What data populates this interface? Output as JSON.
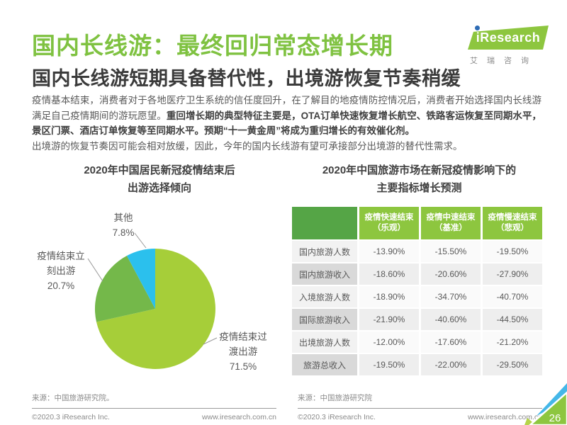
{
  "page": {
    "number": "26"
  },
  "header": {
    "title": "国内长线游：最终回归常态增长期",
    "subtitle": "国内长线游短期具备替代性，出境游恢复节奏稍缓",
    "title_color": "#7fc241",
    "logo": {
      "brand": "iResearch",
      "brand_cn": "艾瑞咨询"
    }
  },
  "intro": {
    "p1_normal": "疫情基本结束，消费者对于各地医疗卫生系统的信任度回升，在了解目的地疫情防控情况后，消费者开始选择国内长线游满足自己疫情期间的游玩愿望。",
    "p1_bold": "重回增长期的典型特征主要是，OTA订单快速恢复增长航空、铁路客运恢复至同期水平，景区门票、酒店订单恢复等至同期水平。预期“十一黄金周”将成为重归增长的有效催化剂。",
    "p2": "出境游的恢复节奏因可能会相对放缓，因此，今年的国内长线游有望可承接部分出境游的替代性需求。"
  },
  "chart_data": [
    {
      "type": "pie",
      "title": "2020年中国居民新冠疫情结束后出游选择倾向",
      "title_lines": [
        "2020年中国居民新冠疫情结束后",
        "出游选择倾向"
      ],
      "labels": [
        "疫情结束过渡出游",
        "疫情结束立刻出游",
        "其他"
      ],
      "values": [
        71.5,
        20.7,
        7.8
      ],
      "display_values": [
        "71.5%",
        "20.7%",
        "7.8%"
      ],
      "colors": [
        "#a6ce39",
        "#74b84a",
        "#2bc0ed"
      ],
      "start_angle_deg": 0,
      "direction": "clockwise",
      "legend_position": "outside-leader-labels"
    },
    {
      "type": "table",
      "title": "2020年中国旅游市场在新冠疫情影响下的主要指标增长预测",
      "title_lines": [
        "2020年中国旅游市场在新冠疫情影响下的",
        "主要指标增长预测"
      ],
      "header_colors": {
        "label_cell": "#55a546",
        "data_cells": "#8dc63f"
      },
      "columns": [
        "疫情快速结束（乐观）",
        "疫情中速结束（基准）",
        "疫情慢速结束（悲观）"
      ],
      "rows": [
        {
          "label": "国内旅游人数",
          "values": [
            "-13.90%",
            "-15.50%",
            "-19.50%"
          ]
        },
        {
          "label": "国内旅游收入",
          "values": [
            "-18.60%",
            "-20.60%",
            "-27.90%"
          ]
        },
        {
          "label": "入境旅游人数",
          "values": [
            "-18.90%",
            "-34.70%",
            "-40.70%"
          ]
        },
        {
          "label": "国际旅游收入",
          "values": [
            "-21.90%",
            "-40.60%",
            "-44.50%"
          ]
        },
        {
          "label": "出境旅游人数",
          "values": [
            "-12.00%",
            "-17.60%",
            "-21.20%"
          ]
        },
        {
          "label": "旅游总收入",
          "values": [
            "-19.50%",
            "-22.00%",
            "-29.50%"
          ]
        }
      ]
    }
  ],
  "footer": {
    "left": {
      "source": "来源：中国旅游研究院。",
      "copyright": "©2020.3 iResearch Inc.",
      "url": "www.iresearch.com.cn"
    },
    "right": {
      "source": "来源：中国旅游研究院",
      "copyright": "©2020.3 iResearch Inc.",
      "url": "www.iresearch.com.cn"
    }
  }
}
